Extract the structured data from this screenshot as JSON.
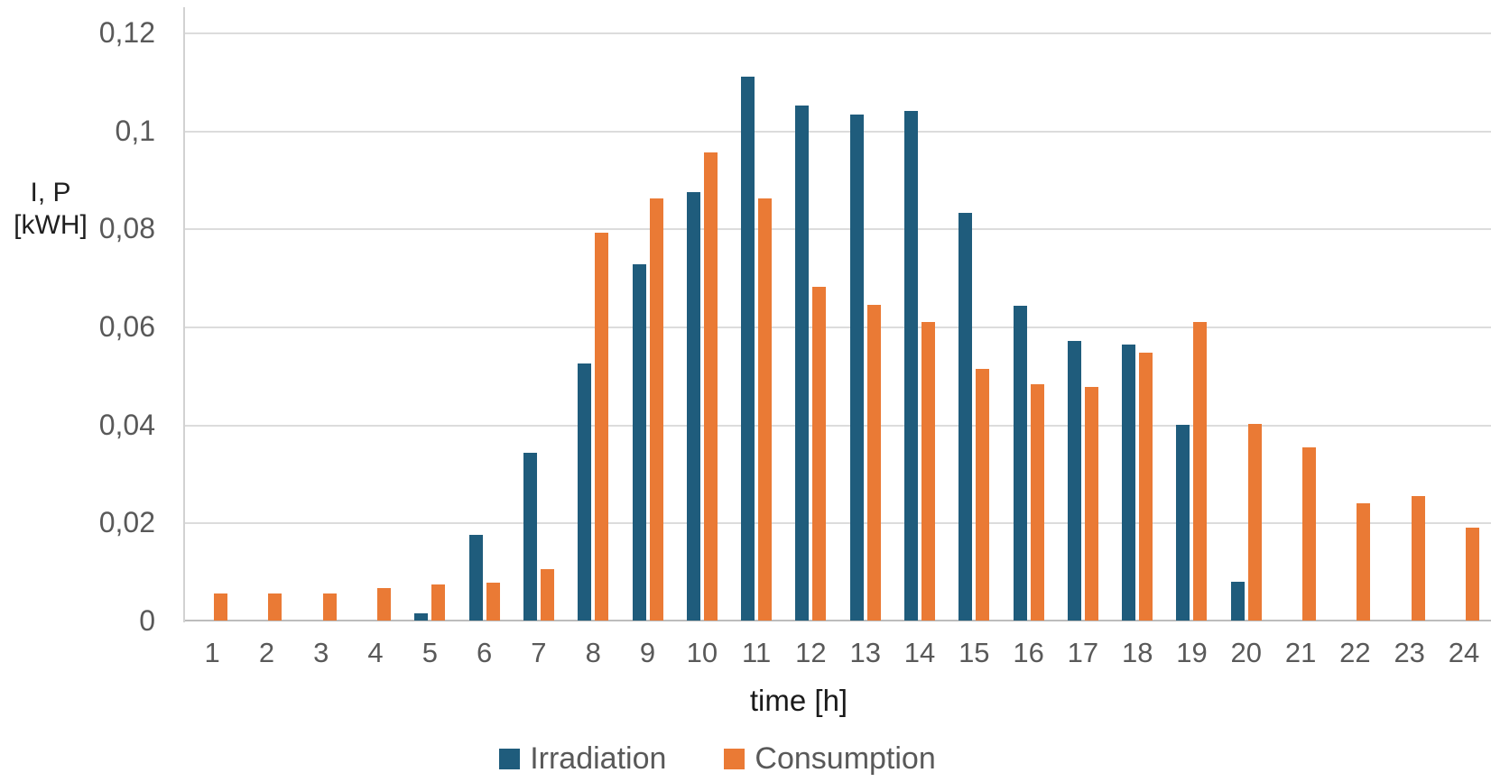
{
  "chart_data": {
    "type": "bar",
    "title": "",
    "xlabel": "time [h]",
    "ylabel": "I, P [kWH]",
    "ylabel_lines": [
      "I, P",
      "[kWH]"
    ],
    "categories": [
      "1",
      "2",
      "3",
      "4",
      "5",
      "6",
      "7",
      "8",
      "9",
      "10",
      "11",
      "12",
      "13",
      "14",
      "15",
      "16",
      "17",
      "18",
      "19",
      "20",
      "21",
      "22",
      "23",
      "24"
    ],
    "series": [
      {
        "name": "Irradiation",
        "color": "#1F5C7C",
        "values": [
          0,
          0,
          0,
          0,
          0.0014,
          0.0175,
          0.0342,
          0.0524,
          0.0727,
          0.0875,
          0.111,
          0.1051,
          0.1033,
          0.104,
          0.0831,
          0.0643,
          0.057,
          0.0564,
          0.04,
          0.008,
          0,
          0,
          0,
          0
        ]
      },
      {
        "name": "Consumption",
        "color": "#EA7A35",
        "values": [
          0.0055,
          0.0055,
          0.0055,
          0.0066,
          0.0074,
          0.0078,
          0.0104,
          0.0792,
          0.0862,
          0.0955,
          0.0862,
          0.0681,
          0.0645,
          0.061,
          0.0514,
          0.0483,
          0.0476,
          0.0546,
          0.061,
          0.0402,
          0.0354,
          0.0239,
          0.0254,
          0.019
        ]
      }
    ],
    "ylim": [
      0,
      0.12
    ],
    "ytick_labels": [
      "0",
      "0,02",
      "0,04",
      "0,06",
      "0,08",
      "0,1",
      "0,12"
    ],
    "ytick_values": [
      0,
      0.02,
      0.04,
      0.06,
      0.08,
      0.1,
      0.12
    ],
    "grid": "horizontal",
    "legend_position": "bottom",
    "gridline_color": "#DCDCDC",
    "axis_line_color": "#BDBDBD",
    "tick_text_color": "#595959"
  }
}
